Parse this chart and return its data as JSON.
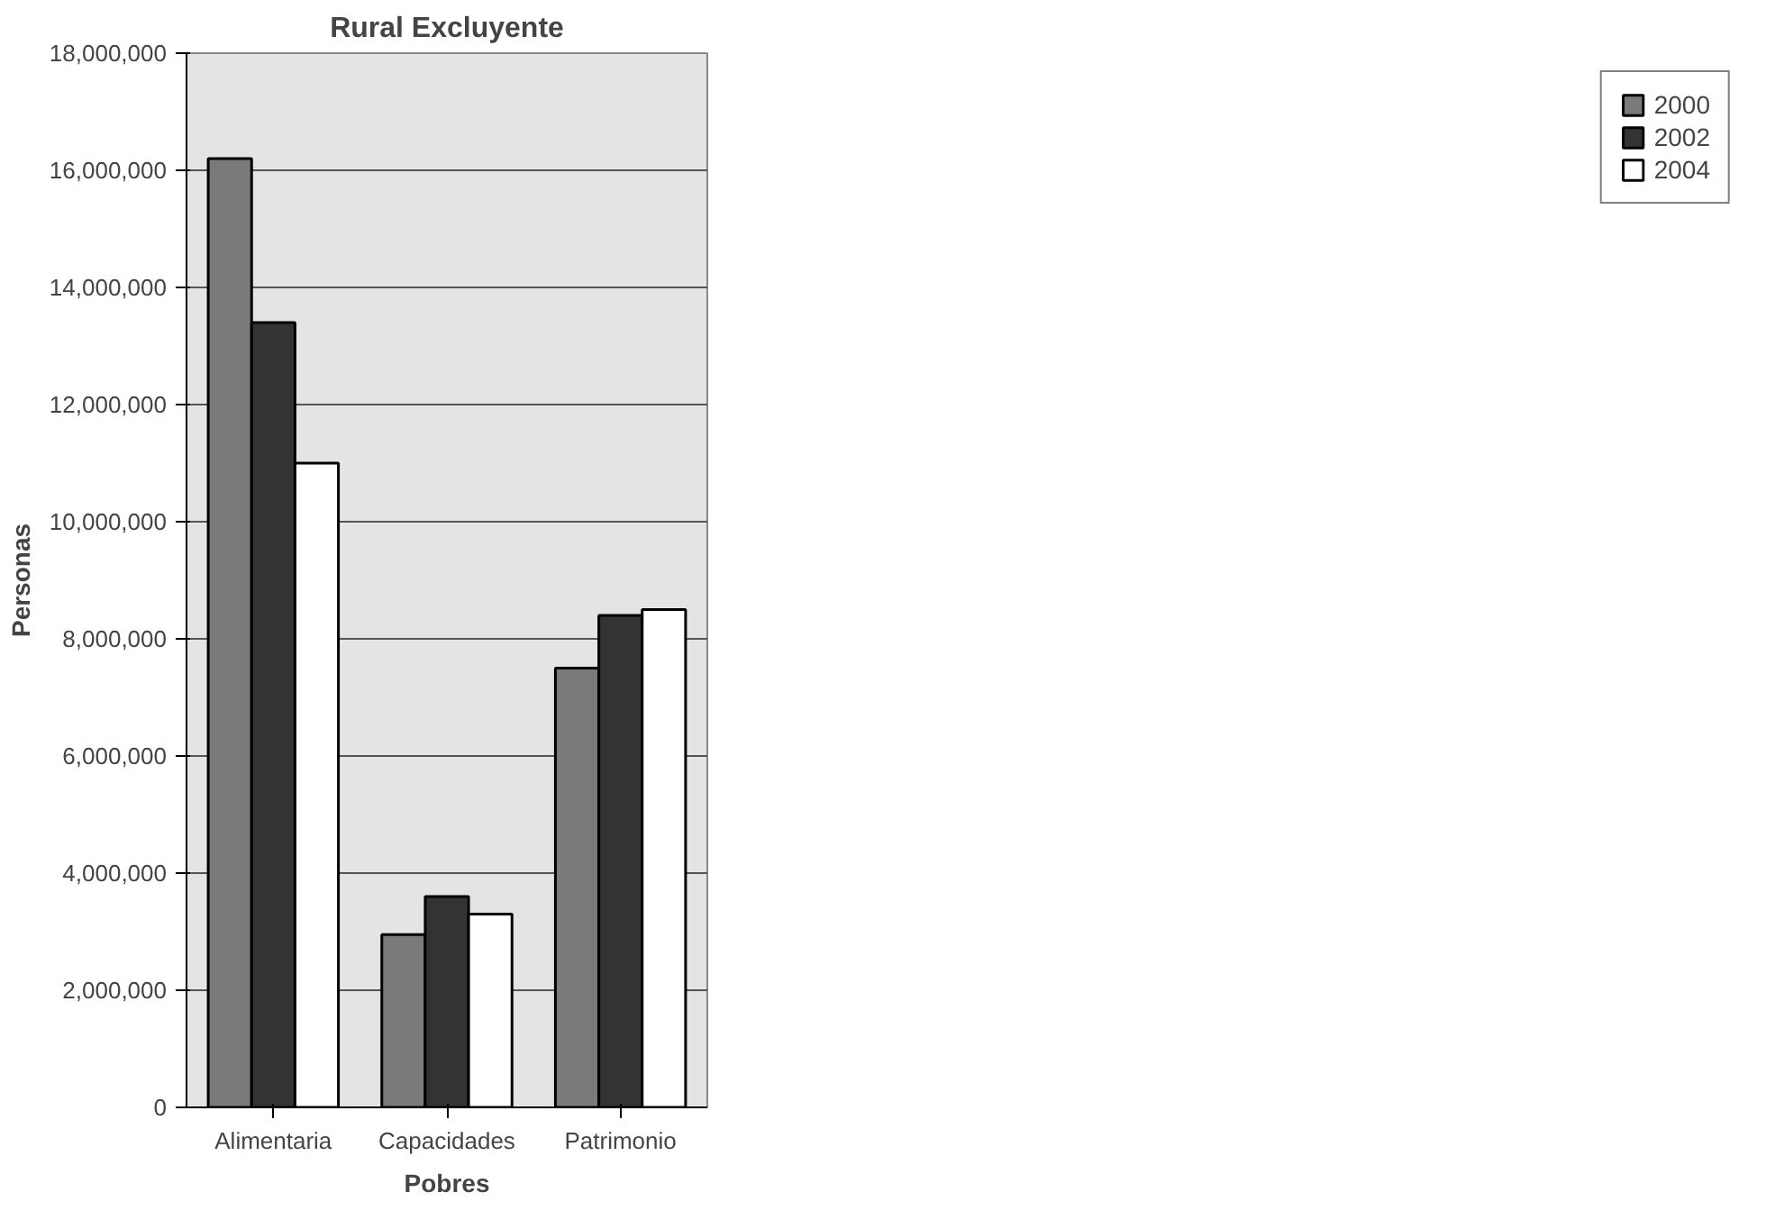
{
  "chart_data": {
    "type": "bar",
    "title": "Rural Excluyente",
    "xlabel": "Pobres",
    "ylabel": "Personas",
    "categories": [
      "Alimentaria",
      "Capacidades",
      "Patrimonio"
    ],
    "series": [
      {
        "name": "2000",
        "color": "#7a7a7a",
        "values": [
          16200000,
          2950000,
          7500000
        ]
      },
      {
        "name": "2002",
        "color": "#333333",
        "values": [
          13400000,
          3600000,
          8400000
        ]
      },
      {
        "name": "2004",
        "color": "#ffffff",
        "values": [
          11000000,
          3300000,
          8500000
        ]
      }
    ],
    "ylim": [
      0,
      18000000
    ],
    "yticks": [
      {
        "value": 0,
        "label": "0"
      },
      {
        "value": 2000000,
        "label": "2,000,000"
      },
      {
        "value": 4000000,
        "label": "4,000,000"
      },
      {
        "value": 6000000,
        "label": "6,000,000"
      },
      {
        "value": 8000000,
        "label": "8,000,000"
      },
      {
        "value": 10000000,
        "label": "10,000,000"
      },
      {
        "value": 12000000,
        "label": "12,000,000"
      },
      {
        "value": 14000000,
        "label": "14,000,000"
      },
      {
        "value": 16000000,
        "label": "16,000,000"
      },
      {
        "value": 18000000,
        "label": "18,000,000"
      }
    ],
    "grid": "y",
    "legend": "right"
  }
}
